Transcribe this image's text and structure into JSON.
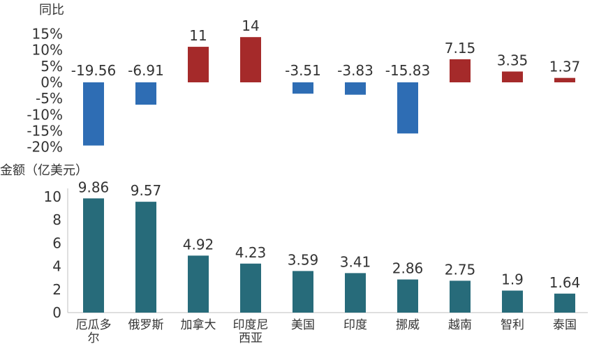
{
  "chart_data": [
    {
      "type": "bar",
      "ylabel": "同比",
      "yticks": [
        "15%",
        "10%",
        "5%",
        "0%",
        "-5%",
        "-10%",
        "-15%",
        "-20%"
      ],
      "ylim": [
        -20,
        15
      ],
      "categories": [
        "厄瓜多尔",
        "俄罗斯",
        "加拿大",
        "印度尼西亚",
        "美国",
        "印度",
        "挪威",
        "越南",
        "智利",
        "泰国"
      ],
      "values": [
        -19.56,
        -6.91,
        11,
        14,
        -3.51,
        -3.83,
        -15.83,
        7.15,
        3.35,
        1.37
      ],
      "data_labels": [
        "-19.56",
        "-6.91",
        "11",
        "14",
        "-3.51",
        "-3.83",
        "-15.83",
        "7.15",
        "3.35",
        "1.37"
      ],
      "colors": {
        "positive": "#a52a2a",
        "negative": "#2e6db4"
      }
    },
    {
      "type": "bar",
      "ylabel": "金额（亿美元）",
      "yticks": [
        "10",
        "8",
        "6",
        "4",
        "2",
        "0"
      ],
      "ylim": [
        0,
        10
      ],
      "categories": [
        "厄瓜多尔",
        "俄罗斯",
        "加拿大",
        "印度尼西亚",
        "美国",
        "印度",
        "挪威",
        "越南",
        "智利",
        "泰国"
      ],
      "category_labels": [
        [
          "厄瓜多",
          "尔"
        ],
        [
          "俄罗斯"
        ],
        [
          "加拿大"
        ],
        [
          "印度尼",
          "西亚"
        ],
        [
          "美国"
        ],
        [
          "印度"
        ],
        [
          "挪威"
        ],
        [
          "越南"
        ],
        [
          "智利"
        ],
        [
          "泰国"
        ]
      ],
      "values": [
        9.86,
        9.57,
        4.92,
        4.23,
        3.59,
        3.41,
        2.86,
        2.75,
        1.9,
        1.64
      ],
      "data_labels": [
        "9.86",
        "9.57",
        "4.92",
        "4.23",
        "3.59",
        "3.41",
        "2.86",
        "2.75",
        "1.9",
        "1.64"
      ],
      "colors": {
        "bar": "#276b7a"
      }
    }
  ]
}
